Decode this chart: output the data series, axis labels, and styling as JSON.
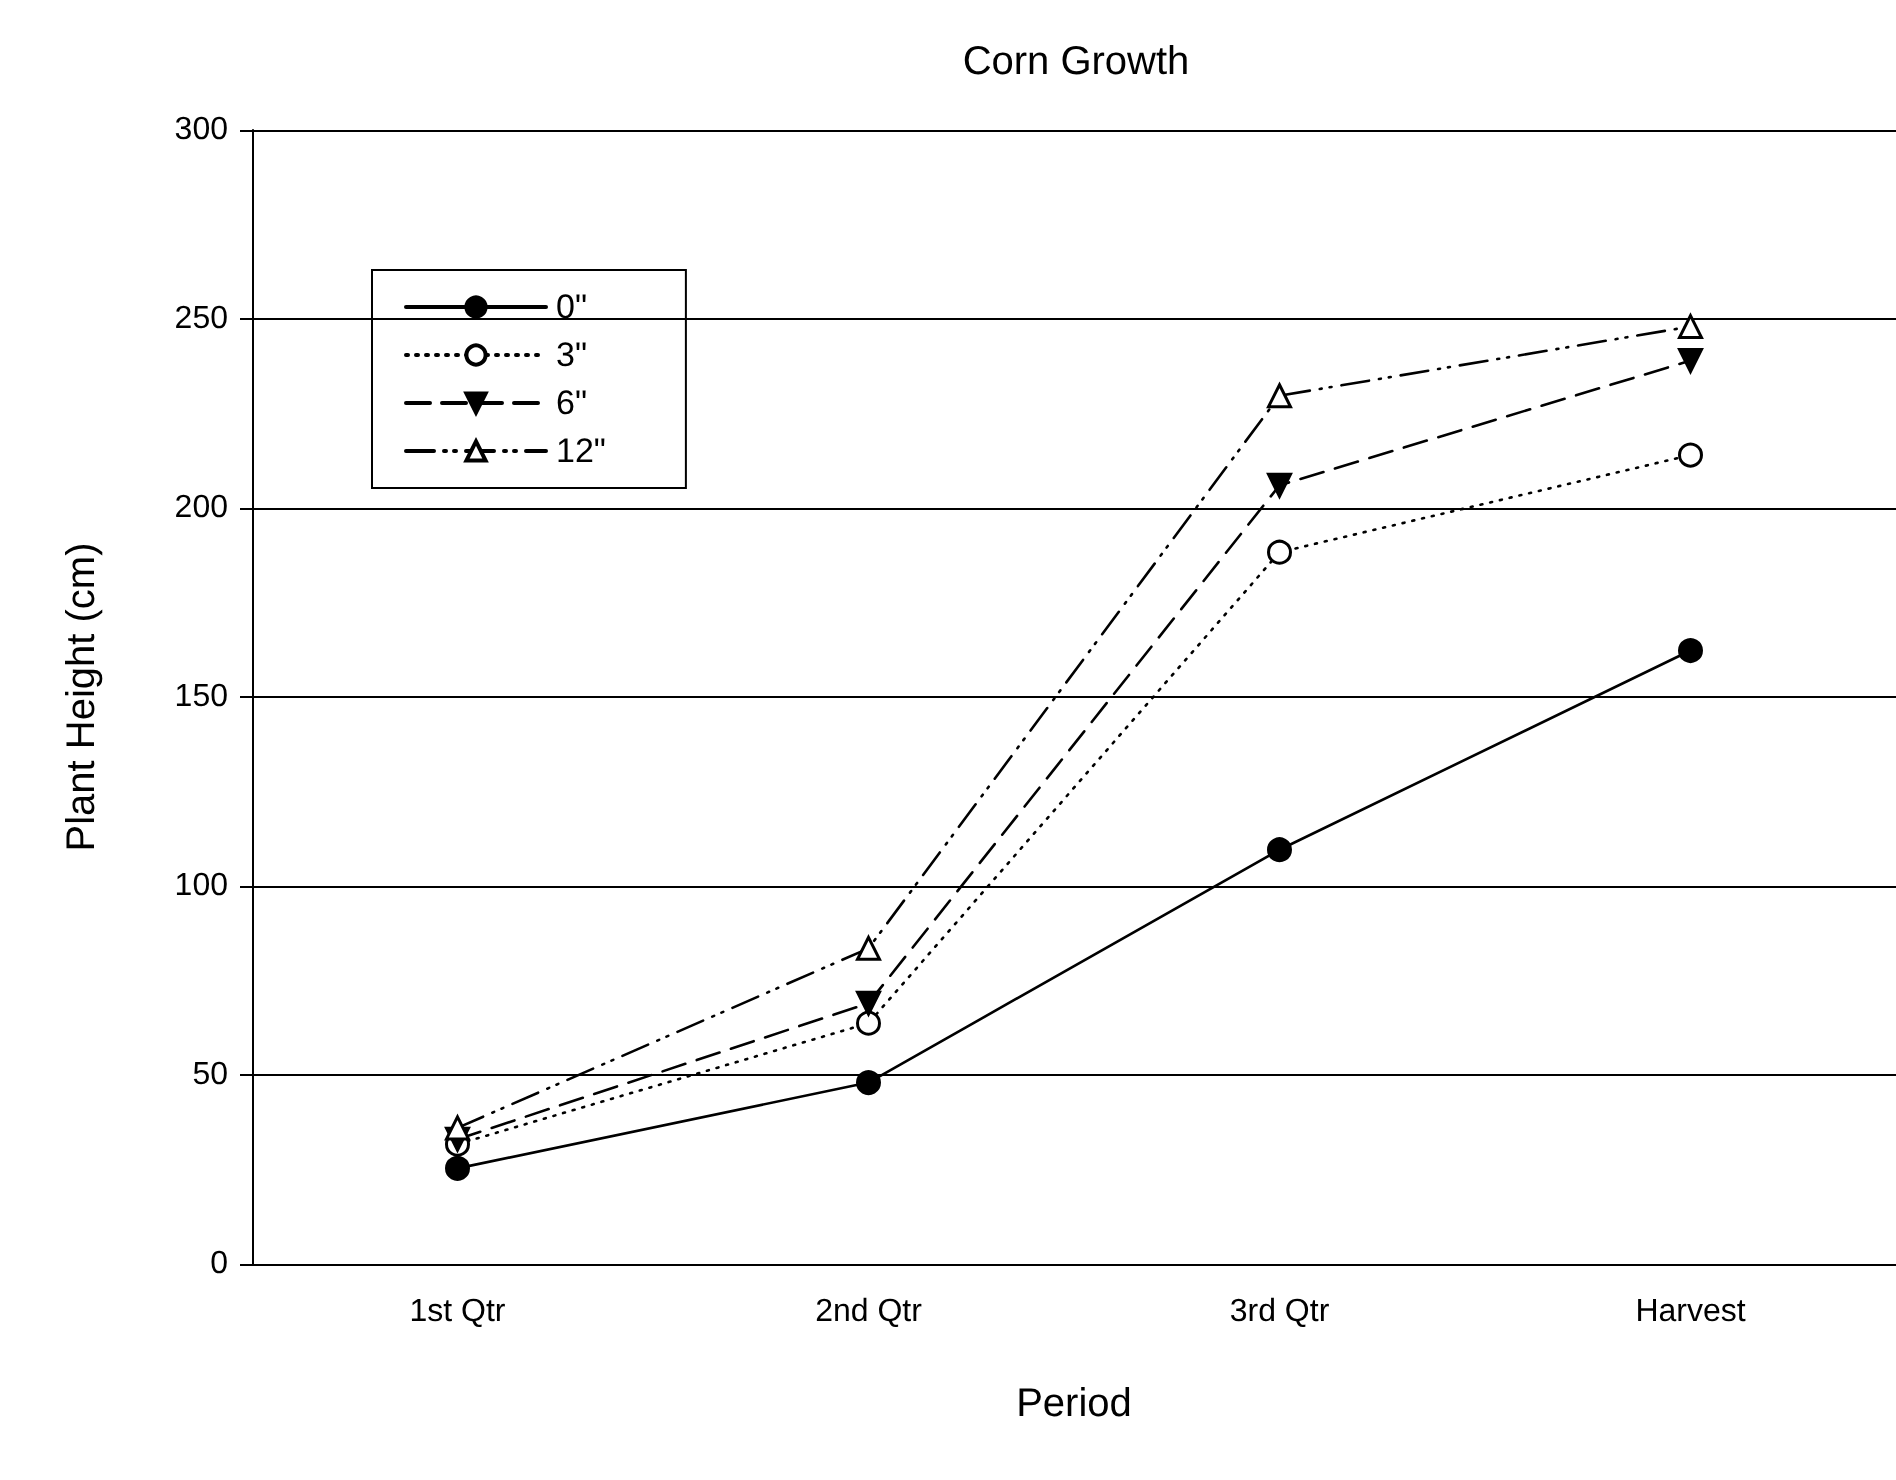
{
  "chart_data": {
    "type": "line",
    "title": "Corn Growth",
    "xlabel": "Period",
    "ylabel": "Plant Height (cm)",
    "categories": [
      "1st Qtr",
      "2nd Qtr",
      "3rd Qtr",
      "Harvest"
    ],
    "series": [
      {
        "name": "0\"",
        "color": "#000000",
        "marker": "circle",
        "line_style": "solid",
        "values": [
          25.3,
          48,
          109.6,
          162.3
        ]
      },
      {
        "name": "3\"",
        "color": "#000000",
        "marker": "circle",
        "line_style": "dotted",
        "values": [
          31.7,
          63.7,
          188.3,
          214
        ]
      },
      {
        "name": "6\"",
        "color": "#000000",
        "marker": "triangle-down",
        "line_style": "dashed",
        "values": [
          33,
          69,
          206,
          239
        ]
      },
      {
        "name": "12\"",
        "color": "#000000",
        "marker": "triangle",
        "line_style": "dashdot",
        "values": [
          36,
          83.5,
          229.7,
          248
        ]
      }
    ],
    "ylim": [
      0,
      300
    ],
    "yticks": [
      0,
      50,
      100,
      150,
      200,
      250,
      300
    ],
    "grid": "y",
    "legend": "top left"
  }
}
